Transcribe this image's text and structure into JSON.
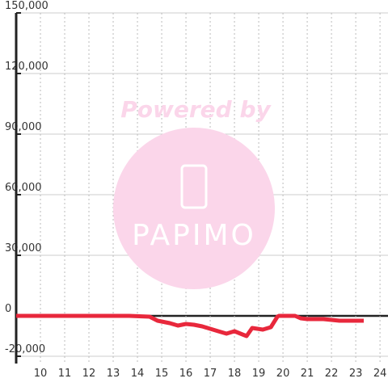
{
  "chart_data": {
    "type": "line",
    "watermark": {
      "title": "Powered by",
      "brand": "PAPIMO"
    },
    "x": [
      9,
      13.67,
      14.5,
      14.83,
      15.33,
      15.67,
      16,
      16.33,
      16.67,
      17,
      17.33,
      17.67,
      18,
      18.33,
      18.5,
      18.73,
      19.17,
      19.5,
      19.77,
      19.83,
      20.5,
      20.73,
      21,
      21.67,
      22.33,
      23.33
    ],
    "series": [
      {
        "color": "#e8283c",
        "values": [
          0,
          0,
          -400,
          -2400,
          -3600,
          -4800,
          -4000,
          -4400,
          -5200,
          -6400,
          -7600,
          -8800,
          -7600,
          -9200,
          -10000,
          -6000,
          -6800,
          -5600,
          -400,
          0,
          0,
          -1200,
          -1600,
          -1600,
          -2400,
          -2400
        ]
      }
    ],
    "xlim": [
      9,
      24.33
    ],
    "xticks": [
      10,
      11,
      12,
      13,
      14,
      15,
      16,
      17,
      18,
      19,
      20,
      21,
      22,
      23,
      24
    ],
    "ylim": [
      -23600,
      150000
    ],
    "yticks": [
      {
        "value": -20000,
        "label": "-20,000"
      },
      0,
      {
        "value": 30000,
        "label": "30,000"
      },
      {
        "value": 60000,
        "label": "60,000"
      },
      {
        "value": 90000,
        "label": "90,000"
      },
      {
        "value": 120000,
        "label": "120,000"
      },
      {
        "value": 150000,
        "label": "150,000"
      }
    ],
    "grid": true
  }
}
